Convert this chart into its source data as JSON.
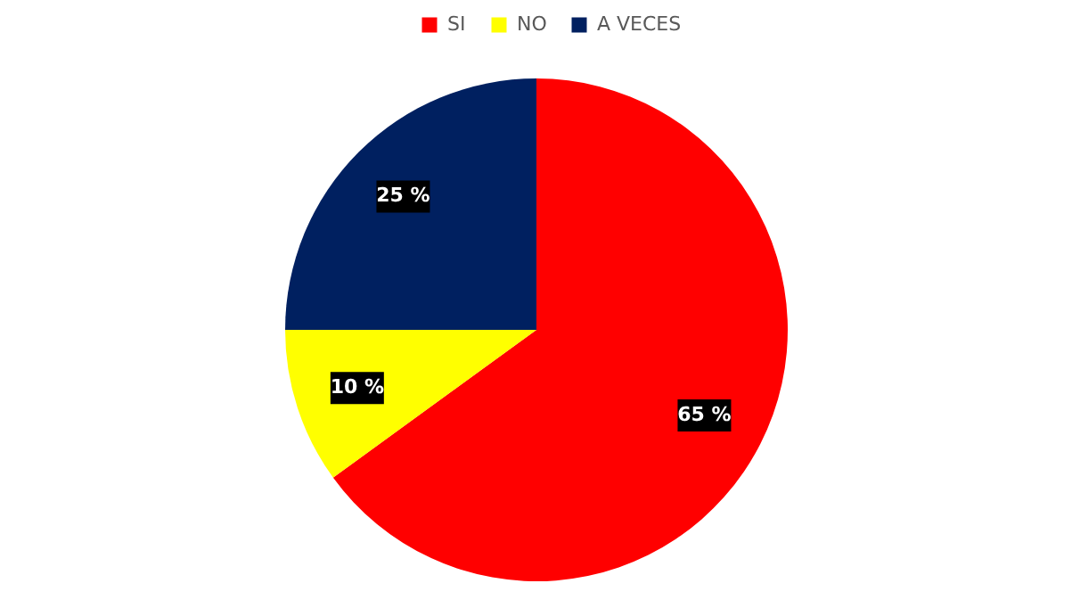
{
  "chart_data": {
    "type": "pie",
    "categories": [
      "SI",
      "NO",
      "A VECES"
    ],
    "values": [
      65,
      10,
      25
    ],
    "colors": [
      "#ff0000",
      "#ffff00",
      "#002060"
    ],
    "value_labels": [
      "65 %",
      "10 %",
      "25 %"
    ],
    "legend": "top"
  }
}
